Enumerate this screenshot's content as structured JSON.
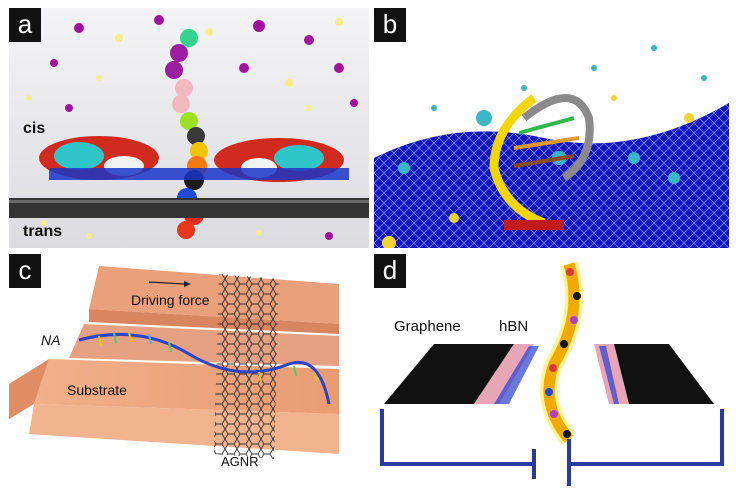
{
  "panels": {
    "a": {
      "label": "a",
      "cis": "cis",
      "trans": "trans"
    },
    "b": {
      "label": "b"
    },
    "c": {
      "label": "c",
      "driving_force": "Driving force",
      "na": "NA",
      "substrate": "Substrate",
      "agnr": "AGNR"
    },
    "d": {
      "label": "d",
      "graphene": "Graphene",
      "hbn": "hBN"
    }
  },
  "colors": {
    "accent_blue": "#2b3a9e",
    "substrate": "#e8a077",
    "graphene_sheet_blue": "#1a1ad0",
    "dna_yellow": "#f3d600"
  }
}
